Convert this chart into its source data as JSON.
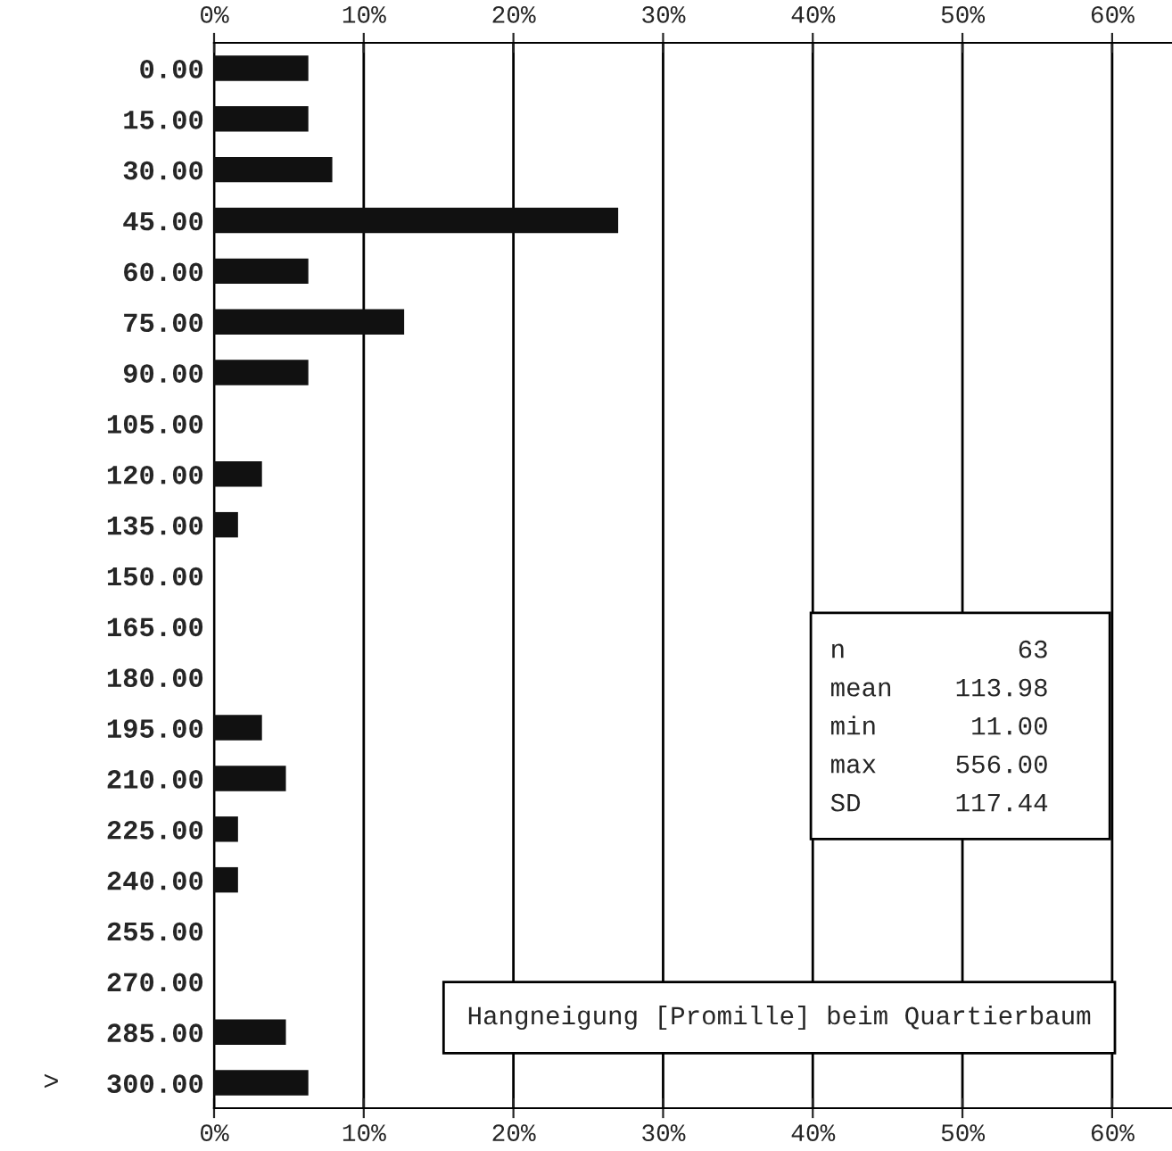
{
  "chart_data": {
    "type": "bar",
    "orientation": "horizontal",
    "title": "Hangneigung [Promille] beim Quartierbaum",
    "categories": [
      "0.00",
      "15.00",
      "30.00",
      "45.00",
      "60.00",
      "75.00",
      "90.00",
      "105.00",
      "120.00",
      "135.00",
      "150.00",
      "165.00",
      "180.00",
      "195.00",
      "210.00",
      "225.00",
      "240.00",
      "255.00",
      "270.00",
      "285.00",
      "300.00"
    ],
    "values": [
      6.3,
      6.3,
      7.9,
      27.0,
      6.3,
      12.7,
      6.3,
      0,
      3.2,
      1.6,
      0,
      0,
      0,
      3.2,
      4.8,
      1.6,
      1.6,
      0,
      0,
      4.8,
      6.3
    ],
    "color": "#111111",
    "xlim": [
      0,
      64
    ],
    "xticks": [
      {
        "value": 0,
        "label": "0%"
      },
      {
        "value": 10,
        "label": "10%"
      },
      {
        "value": 20,
        "label": "20%"
      },
      {
        "value": 30,
        "label": "30%"
      },
      {
        "value": 40,
        "label": "40%"
      },
      {
        "value": 50,
        "label": "50%"
      },
      {
        "value": 60,
        "label": "60%"
      }
    ],
    "x2lim": [
      0,
      64
    ],
    "x2ticks": [
      {
        "value": 0,
        "label": "0%"
      },
      {
        "value": 10,
        "label": "10%"
      },
      {
        "value": 20,
        "label": "20%"
      },
      {
        "value": 30,
        "label": "30%"
      },
      {
        "value": 40,
        "label": "40%"
      },
      {
        "value": 50,
        "label": "50%"
      },
      {
        "value": 60,
        "label": "60%"
      }
    ],
    "grid": "x",
    "annotations": [
      ">",
      "n           63",
      "mean    113.98",
      "min      11.00",
      "max     556.00",
      "SD      117.44"
    ]
  }
}
